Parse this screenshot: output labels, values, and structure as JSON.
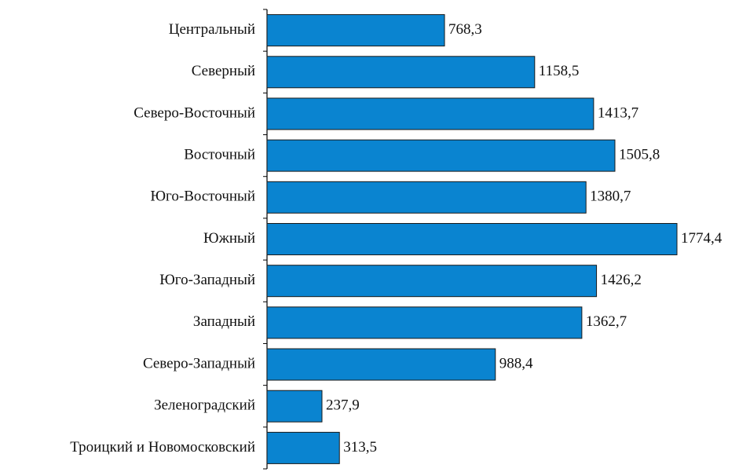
{
  "chart_data": {
    "type": "bar",
    "orientation": "horizontal",
    "categories": [
      "Центральный",
      "Северный",
      "Северо-Восточный",
      "Восточный",
      "Юго-Восточный",
      "Южный",
      "Юго-Западный",
      "Западный",
      "Северо-Западный",
      "Зеленоградский",
      "Троицкий и Новомосковский"
    ],
    "values": [
      768.3,
      1158.5,
      1413.7,
      1505.8,
      1380.7,
      1774.4,
      1426.2,
      1362.7,
      988.4,
      237.9,
      313.5
    ],
    "value_labels": [
      "768,3",
      "1158,5",
      "1413,7",
      "1505,8",
      "1380,7",
      "1774,4",
      "1426,2",
      "1362,7",
      "988,4",
      "237,9",
      "313,5"
    ],
    "color": "#0a84d0"
  }
}
